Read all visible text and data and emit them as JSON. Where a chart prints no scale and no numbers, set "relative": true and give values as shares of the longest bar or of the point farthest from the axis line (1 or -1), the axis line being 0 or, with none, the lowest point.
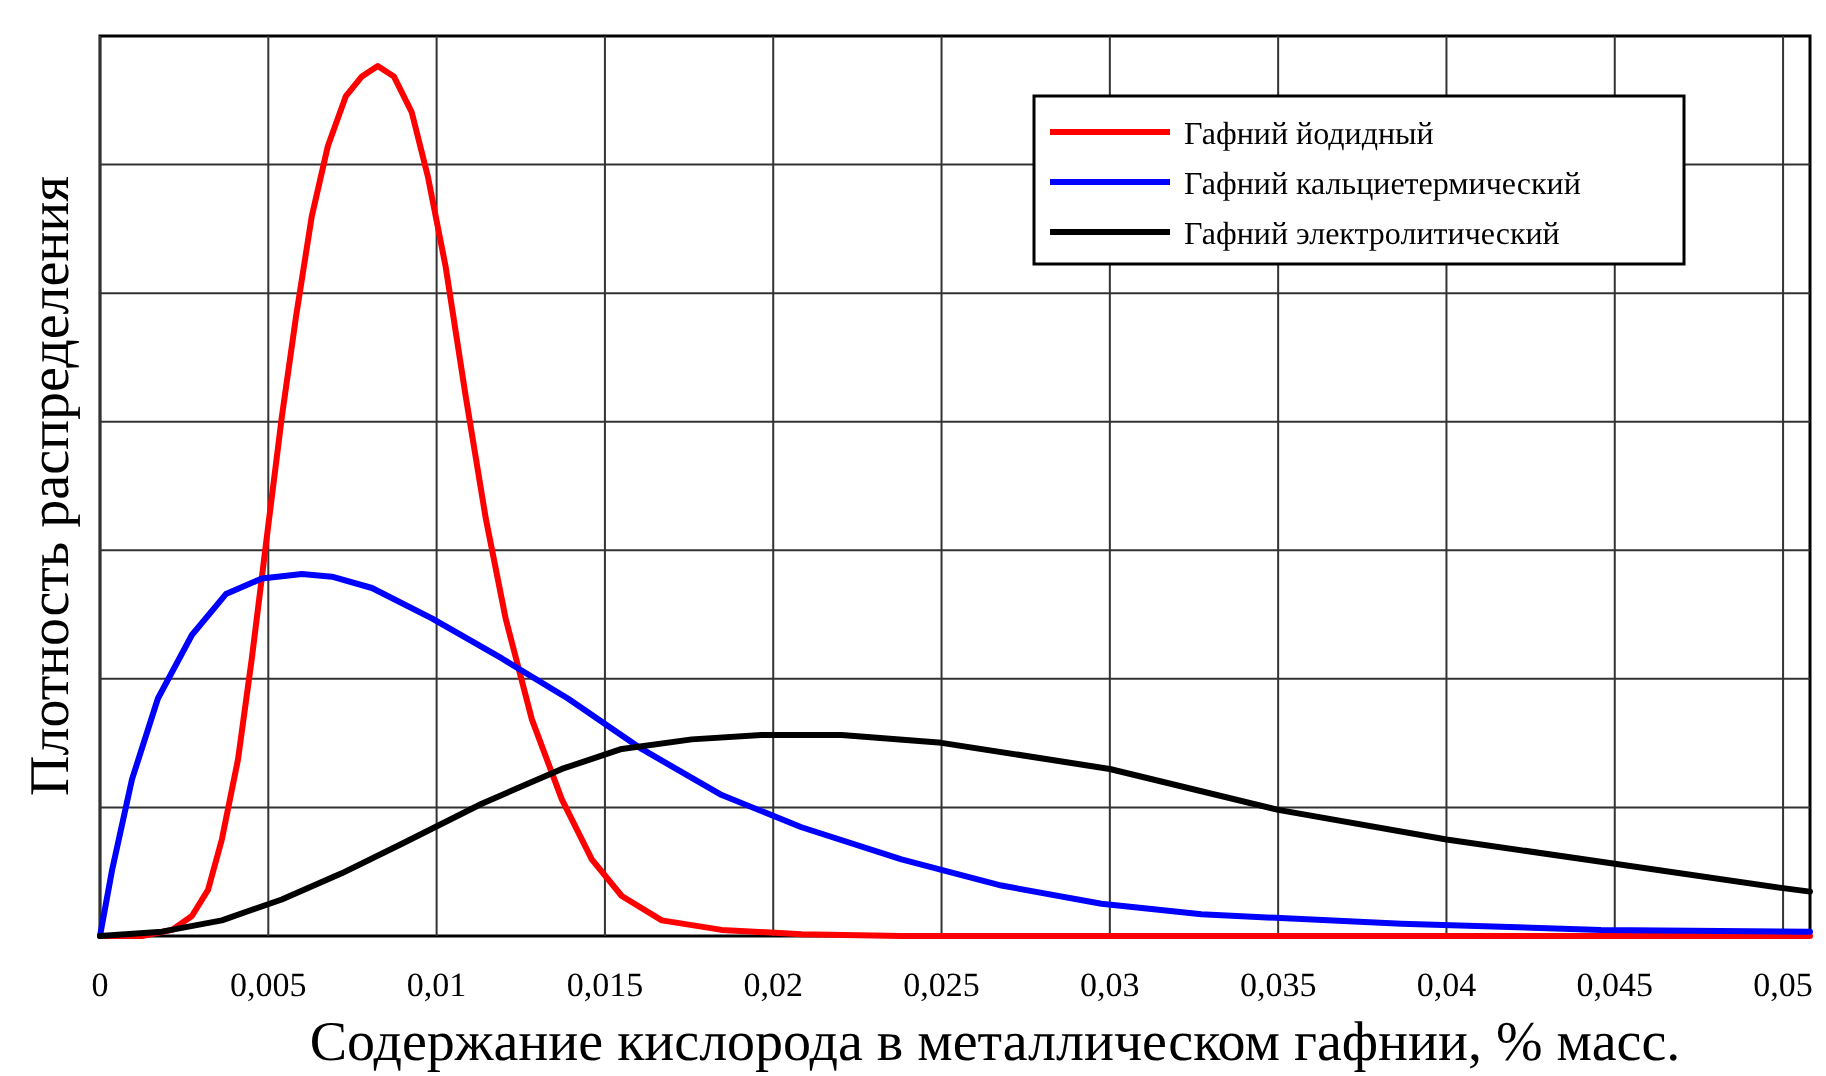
{
  "chart_data": {
    "type": "line",
    "xlabel": "Содержание кислорода в металлическом гафнии, % масс.",
    "ylabel": "Плотность распределения",
    "relative": true,
    "xlim": [
      0,
      0.0508
    ],
    "xticks": [
      0,
      {
        "value": 0.005,
        "label": "0,005"
      },
      {
        "value": 0.01,
        "label": "0,01"
      },
      {
        "value": 0.015,
        "label": "0,015"
      },
      {
        "value": 0.02,
        "label": "0,02"
      },
      {
        "value": 0.025,
        "label": "0,025"
      },
      {
        "value": 0.03,
        "label": "0,03"
      },
      {
        "value": 0.035,
        "label": "0,035"
      },
      {
        "value": 0.04,
        "label": "0,04"
      },
      {
        "value": 0.045,
        "label": "0,045"
      },
      {
        "value": 0.05,
        "label": "0,05"
      }
    ],
    "grid": true,
    "legend": "top right",
    "marker": "none",
    "line_style": "solid",
    "series": [
      {
        "name": "Гафний йодидный",
        "color": "#ff0000",
        "x": [
          0,
          0.00125,
          0.00214,
          0.00273,
          0.00321,
          0.00362,
          0.0041,
          0.00451,
          0.00499,
          0.0054,
          0.00582,
          0.00629,
          0.00677,
          0.0073,
          0.00778,
          0.00825,
          0.00873,
          0.00926,
          0.00974,
          0.01027,
          0.01087,
          0.01146,
          0.01205,
          0.01283,
          0.01372,
          0.01461,
          0.0155,
          0.01669,
          0.01847,
          0.02084,
          0.02381,
          0.0508
        ],
        "values": [
          0,
          0,
          0.007,
          0.023,
          0.053,
          0.111,
          0.203,
          0.319,
          0.469,
          0.596,
          0.711,
          0.827,
          0.908,
          0.965,
          0.988,
          1,
          0.988,
          0.947,
          0.873,
          0.769,
          0.619,
          0.48,
          0.365,
          0.249,
          0.157,
          0.088,
          0.046,
          0.018,
          0.007,
          0.002,
          0,
          0
        ]
      },
      {
        "name": "Гафний кальциетермический",
        "color": "#0000ff",
        "x": [
          0,
          0.00036,
          0.00095,
          0.00172,
          0.00273,
          0.00374,
          0.00481,
          0.006,
          0.00689,
          0.00808,
          0.00986,
          0.01194,
          0.0139,
          0.01609,
          0.01847,
          0.02084,
          0.02381,
          0.02678,
          0.02975,
          0.03272,
          0.03866,
          0.04459,
          0.0508
        ],
        "values": [
          0,
          0.076,
          0.18,
          0.273,
          0.346,
          0.393,
          0.411,
          0.416,
          0.413,
          0.4,
          0.365,
          0.319,
          0.273,
          0.215,
          0.162,
          0.125,
          0.088,
          0.058,
          0.037,
          0.025,
          0.014,
          0.007,
          0.005
        ]
      },
      {
        "name": "Гафний электролитический",
        "color": "#000000",
        "x": [
          0,
          0.00184,
          0.00362,
          0.0054,
          0.00718,
          0.00897,
          0.01134,
          0.01372,
          0.0155,
          0.01758,
          0.01965,
          0.02203,
          0.025,
          0.03,
          0.035,
          0.04,
          0.045,
          0.05,
          0.0508
        ],
        "values": [
          0,
          0.005,
          0.018,
          0.042,
          0.072,
          0.106,
          0.152,
          0.192,
          0.215,
          0.226,
          0.231,
          0.231,
          0.222,
          0.192,
          0.145,
          0.111,
          0.083,
          0.055,
          0.051
        ]
      }
    ]
  }
}
